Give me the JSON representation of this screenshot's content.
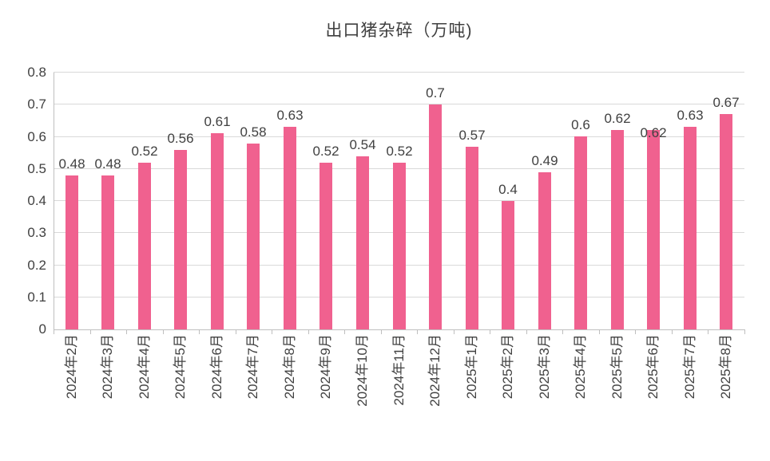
{
  "title": "出口猪杂碎（万吨)",
  "chart_data": {
    "type": "bar",
    "title": "出口猪杂碎（万吨)",
    "categories": [
      "2024年2月",
      "2024年3月",
      "2024年4月",
      "2024年5月",
      "2024年6月",
      "2024年7月",
      "2024年8月",
      "2024年9月",
      "2024年10月",
      "2024年11月",
      "2024年12月",
      "2025年1月",
      "2025年2月",
      "2025年3月",
      "2025年4月",
      "2025年5月",
      "2025年6月",
      "2025年7月",
      "2025年8月"
    ],
    "values": [
      0.48,
      0.48,
      0.52,
      0.56,
      0.61,
      0.58,
      0.63,
      0.52,
      0.54,
      0.52,
      0.7,
      0.57,
      0.4,
      0.49,
      0.6,
      0.62,
      0.62,
      0.63,
      0.67
    ],
    "xlabel": "",
    "ylabel": "",
    "ylim": [
      0,
      0.8
    ],
    "ytick_step": 0.1,
    "ytick_labels": [
      "0",
      "0.1",
      "0.2",
      "0.3",
      "0.4",
      "0.5",
      "0.6",
      "0.7",
      "0.8"
    ],
    "grid": true,
    "legend": "none",
    "data_labels": true,
    "colors": {
      "bar": "#F0618F",
      "gridline": "#D9D9D9",
      "axis": "#BFBFBF",
      "text": "#404040",
      "background": "#FFFFFF"
    }
  }
}
